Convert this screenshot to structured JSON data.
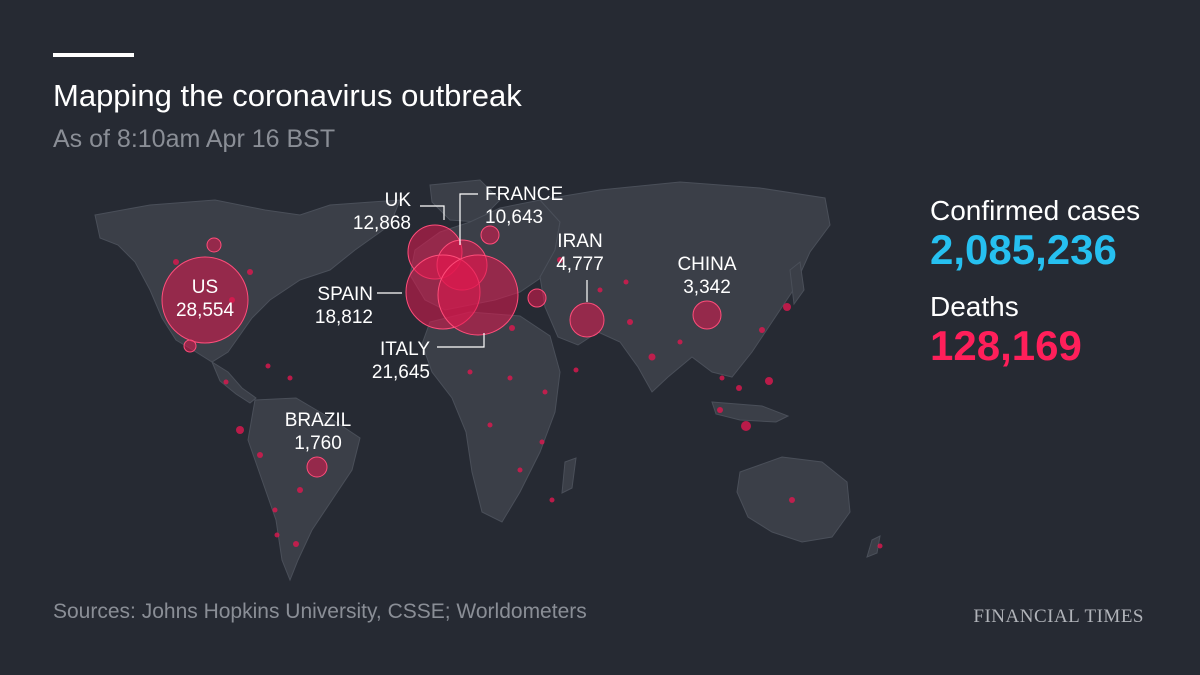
{
  "header": {
    "title": "Mapping the coronavirus outbreak",
    "subtitle": "As of 8:10am Apr 16 BST"
  },
  "map_labels": [
    {
      "name": "US",
      "count": "28,554"
    },
    {
      "name": "UK",
      "count": "12,868"
    },
    {
      "name": "FRANCE",
      "count": "10,643"
    },
    {
      "name": "SPAIN",
      "count": "18,812"
    },
    {
      "name": "ITALY",
      "count": "21,645"
    },
    {
      "name": "IRAN",
      "count": "4,777"
    },
    {
      "name": "CHINA",
      "count": "3,342"
    },
    {
      "name": "BRAZIL",
      "count": "1,760"
    }
  ],
  "stats": {
    "confirmed_label": "Confirmed cases",
    "confirmed_value": "2,085,236",
    "deaths_label": "Deaths",
    "deaths_value": "128,169"
  },
  "footer": {
    "sources": "Sources: Johns Hopkins University, CSSE;  Worldometers",
    "brand": "FINANCIAL TIMES"
  },
  "colors": {
    "background": "#262a33",
    "land": "#3b3f48",
    "bubble": "#e0184f",
    "confirmed_accent": "#26c0f0",
    "deaths_accent": "#ff1f5a",
    "muted_text": "#8a8e96"
  }
}
